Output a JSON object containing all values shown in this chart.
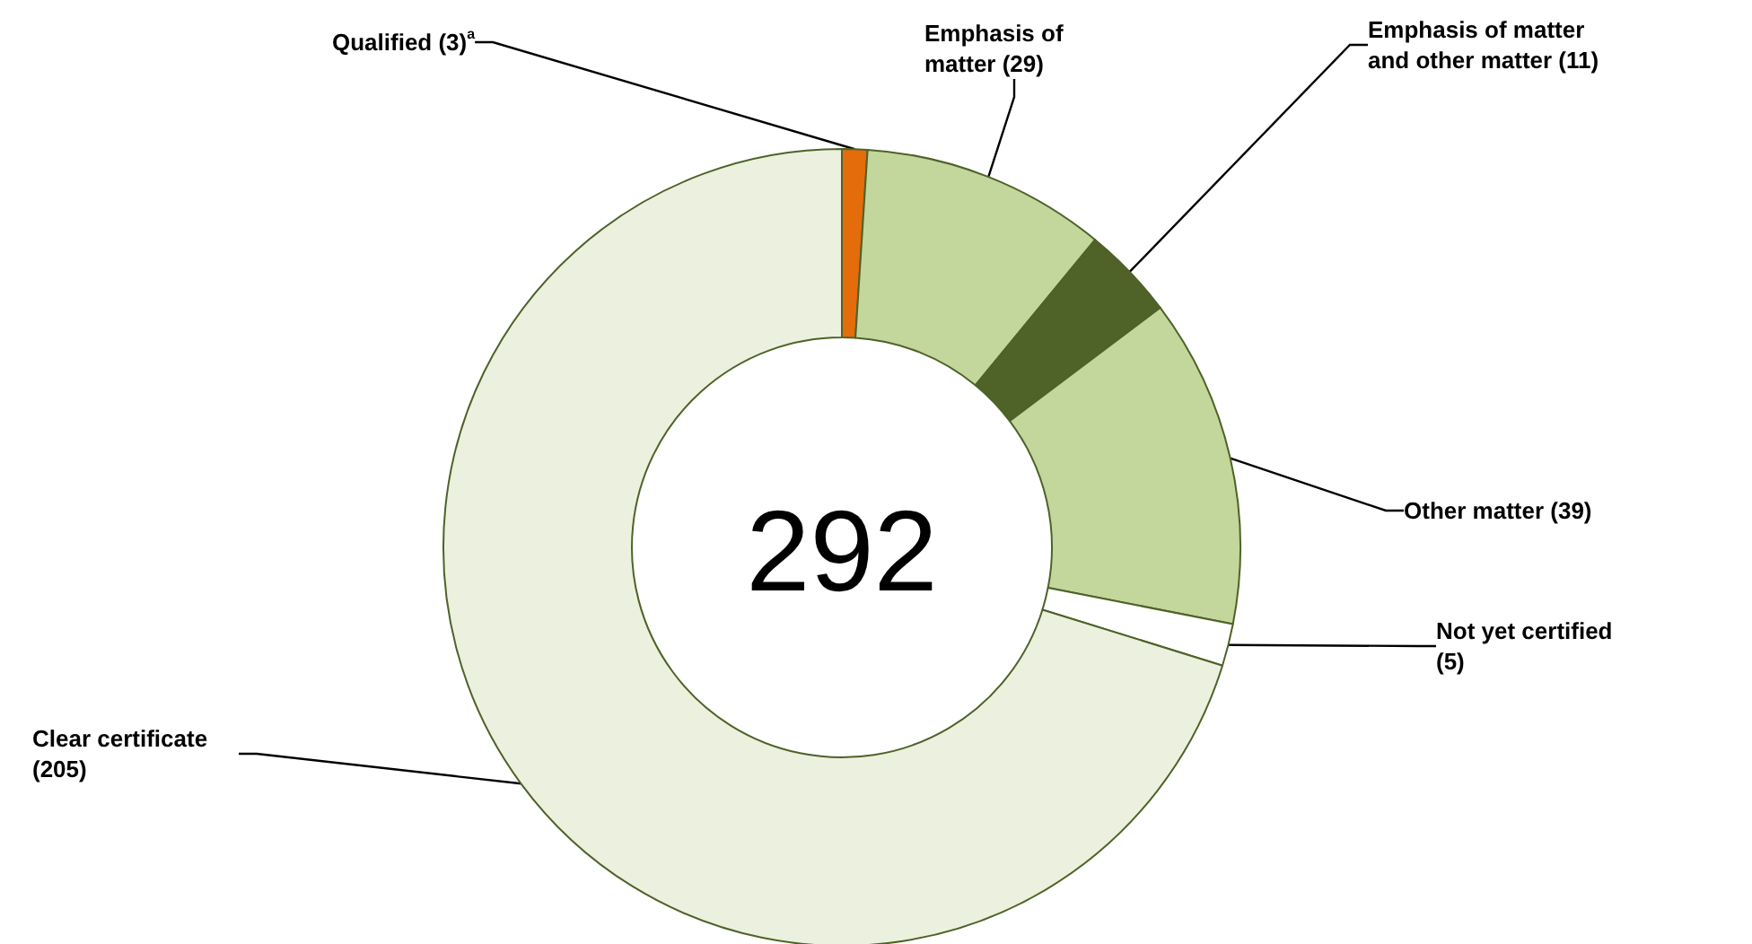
{
  "chart_data": {
    "type": "donut",
    "categories": [
      "Qualified (3)$^{a}$",
      "Emphasis of matter (29)",
      "Emphasis of matter and other matter (11)",
      "Other matter (39)",
      "Not yet certified (5)",
      "Clear certificate (205)"
    ],
    "values": [
      3,
      29,
      11,
      39,
      5,
      205
    ],
    "colors": [
      "#e46c0a",
      "#c3d69b",
      "#4f6228",
      "#c3d69b",
      "#ffffff",
      "#ebf1de"
    ],
    "annotations": [
      "292"
    ],
    "legend": false
  }
}
